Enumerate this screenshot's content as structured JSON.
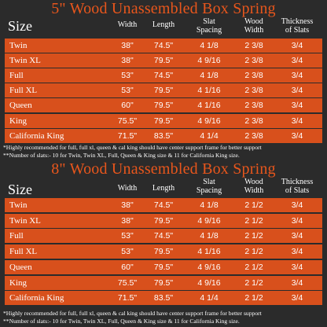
{
  "headers": {
    "size": "Size",
    "width": "Width",
    "length": "Length",
    "slat_spacing": [
      "Slat",
      "Spacing"
    ],
    "wood_width": [
      "Wood",
      "Width"
    ],
    "thickness": [
      "Thickness",
      "of Slats"
    ]
  },
  "sections": [
    {
      "title": "5\" Wood Unassembled Box Spring",
      "rows": [
        {
          "name": "Twin",
          "width": "38\"",
          "length": "74.5\"",
          "slat": "4 1/8",
          "wood": "2 3/8",
          "thick": "3/4"
        },
        {
          "name": "Twin XL",
          "width": "38\"",
          "length": "79.5\"",
          "slat": "4 9/16",
          "wood": "2 3/8",
          "thick": "3/4"
        },
        {
          "name": "Full",
          "width": "53\"",
          "length": "74.5\"",
          "slat": "4 1/8",
          "wood": "2 3/8",
          "thick": "3/4"
        },
        {
          "name": "Full XL",
          "width": "53\"",
          "length": "79.5\"",
          "slat": "4 1/16",
          "wood": "2 3/8",
          "thick": "3/4"
        },
        {
          "name": "Queen",
          "width": "60\"",
          "length": "79.5\"",
          "slat": "4 1/16",
          "wood": "2 3/8",
          "thick": "3/4"
        },
        {
          "name": "King",
          "width": "75.5\"",
          "length": "79.5\"",
          "slat": "4 9/16",
          "wood": "2 3/8",
          "thick": "3/4"
        },
        {
          "name": "California King",
          "width": "71.5\"",
          "length": "83.5\"",
          "slat": "4 1/4",
          "wood": "2 3/8",
          "thick": "3/4"
        }
      ],
      "notes": [
        "*Highly recommended for full, full xl, queen & cal king should have center support frame  for better support",
        "**Number of slats:- 10 for Twin, Twin XL, Full, Queen & King size & 11 for California King size."
      ]
    },
    {
      "title": "8\" Wood Unassembled Box Spring",
      "rows": [
        {
          "name": "Twin",
          "width": "38\"",
          "length": "74.5\"",
          "slat": "4 1/8",
          "wood": "2 1/2",
          "thick": "3/4"
        },
        {
          "name": "Twin XL",
          "width": "38\"",
          "length": "79.5\"",
          "slat": "4 9/16",
          "wood": "2 1/2",
          "thick": "3/4"
        },
        {
          "name": "Full",
          "width": "53\"",
          "length": "74.5\"",
          "slat": "4 1/8",
          "wood": "2 1/2",
          "thick": "3/4"
        },
        {
          "name": "Full XL",
          "width": "53\"",
          "length": "79.5\"",
          "slat": "4 1/16",
          "wood": "2 1/2",
          "thick": "3/4"
        },
        {
          "name": "Queen",
          "width": "60\"",
          "length": "79.5\"",
          "slat": "4 9/16",
          "wood": "2 1/2",
          "thick": "3/4"
        },
        {
          "name": "King",
          "width": "75.5\"",
          "length": "79.5\"",
          "slat": "4 9/16",
          "wood": "2 1/2",
          "thick": "3/4"
        },
        {
          "name": "California King",
          "width": "71.5\"",
          "length": "83.5\"",
          "slat": "4 1/4",
          "wood": "2 1/2",
          "thick": "3/4"
        }
      ],
      "notes": [
        "*Highly recommended for full, full xl, queen & cal king should have center support frame  for better support",
        "**Number of slats:- 10 for Twin, Twin XL, Full, Queen & King size & 11 for California King size."
      ]
    }
  ],
  "colors": {
    "accent": "#e8561c",
    "row": "#d8501c",
    "background": "#2b2b2b"
  }
}
